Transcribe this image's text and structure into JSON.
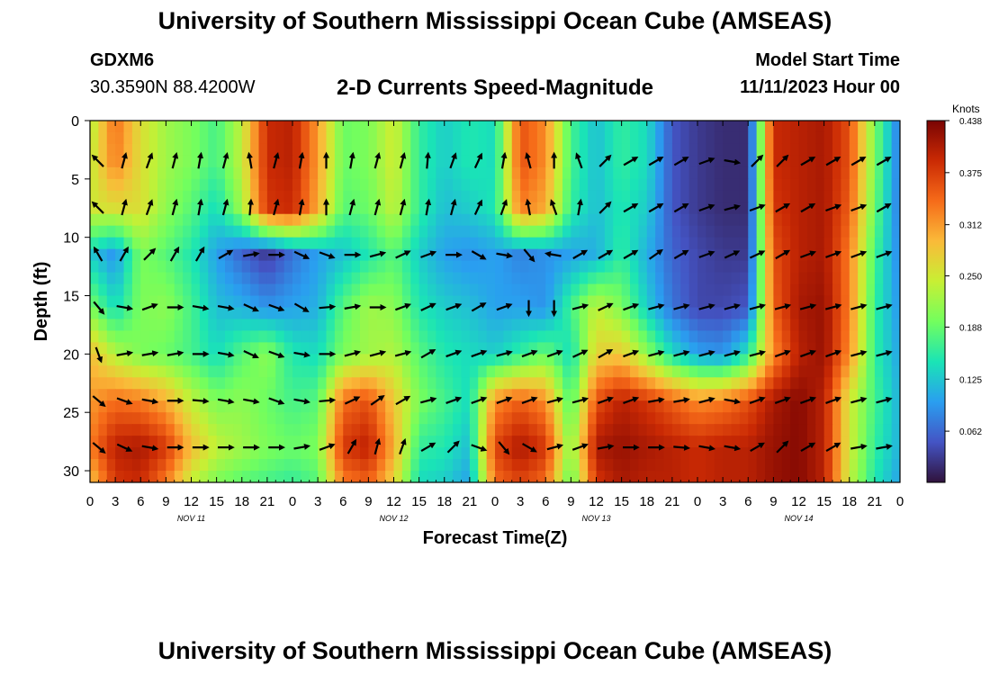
{
  "header": {
    "title": "University of Southern Mississippi Ocean Cube (AMSEAS)",
    "station_id": "GDXM6",
    "station_coords": "30.3590N  88.4200W",
    "plot_title": "2-D Currents Speed-Magnitude",
    "model_label": "Model Start Time",
    "model_time": "11/11/2023 Hour 00"
  },
  "footer": {
    "title": "University of Southern Mississippi Ocean Cube (AMSEAS)"
  },
  "chart_data": {
    "type": "heatmap",
    "title": "2-D Currents Speed-Magnitude",
    "xlabel": "Forecast Time(Z)",
    "ylabel": "Depth (ft)",
    "x_ticks": [
      "0",
      "3",
      "6",
      "9",
      "12",
      "15",
      "18",
      "21",
      "0",
      "3",
      "6",
      "9",
      "12",
      "15",
      "18",
      "21",
      "0",
      "3",
      "6",
      "9",
      "12",
      "15",
      "18",
      "21",
      "0",
      "3",
      "6",
      "9",
      "12",
      "15",
      "18",
      "21",
      "0"
    ],
    "date_labels": [
      {
        "label": "NOV 11",
        "hour": 12
      },
      {
        "label": "NOV 12",
        "hour": 36
      },
      {
        "label": "NOV 13",
        "hour": 60
      },
      {
        "label": "NOV 14",
        "hour": 84
      }
    ],
    "xlim": [
      0,
      96
    ],
    "ylim": [
      0,
      31
    ],
    "y_ticks": [
      0,
      5,
      10,
      15,
      20,
      25,
      30
    ],
    "colorbar": {
      "label": "Knots",
      "ticks": [
        "0.438",
        "0.375",
        "0.312",
        "0.250",
        "0.188",
        "0.125",
        "0.062"
      ],
      "min": 0.0,
      "max": 0.438
    },
    "colormap": [
      "#30123b",
      "#4454c4",
      "#2a9ef0",
      "#1ae4b6",
      "#72fe5e",
      "#c8ef34",
      "#faba39",
      "#f66b19",
      "#ca2a04",
      "#7a0403"
    ],
    "depths": [
      0,
      3.5,
      7.5,
      11.5,
      16,
      20,
      24,
      28,
      31
    ],
    "times": [
      0,
      3,
      6,
      9,
      12,
      15,
      18,
      21,
      24,
      27,
      30,
      33,
      36,
      39,
      42,
      45,
      48,
      51,
      54,
      57,
      60,
      63,
      66,
      69,
      72,
      75,
      78,
      81,
      84,
      87,
      90,
      93,
      96
    ],
    "speed": [
      [
        0.23,
        0.34,
        0.26,
        0.22,
        0.2,
        0.17,
        0.24,
        0.39,
        0.4,
        0.31,
        0.19,
        0.2,
        0.25,
        0.16,
        0.13,
        0.15,
        0.14,
        0.36,
        0.32,
        0.17,
        0.12,
        0.16,
        0.14,
        0.05,
        0.03,
        0.02,
        0.02,
        0.39,
        0.4,
        0.41,
        0.36,
        0.2,
        0.07
      ],
      [
        0.24,
        0.33,
        0.26,
        0.22,
        0.2,
        0.17,
        0.24,
        0.39,
        0.4,
        0.31,
        0.19,
        0.2,
        0.25,
        0.16,
        0.13,
        0.15,
        0.14,
        0.36,
        0.32,
        0.17,
        0.12,
        0.16,
        0.14,
        0.05,
        0.03,
        0.02,
        0.02,
        0.39,
        0.4,
        0.41,
        0.36,
        0.2,
        0.07
      ],
      [
        0.25,
        0.26,
        0.26,
        0.21,
        0.18,
        0.14,
        0.22,
        0.38,
        0.39,
        0.3,
        0.18,
        0.19,
        0.24,
        0.16,
        0.12,
        0.13,
        0.15,
        0.33,
        0.3,
        0.16,
        0.12,
        0.15,
        0.13,
        0.05,
        0.03,
        0.02,
        0.02,
        0.38,
        0.4,
        0.41,
        0.35,
        0.19,
        0.07
      ],
      [
        0.13,
        0.09,
        0.2,
        0.18,
        0.15,
        0.1,
        0.06,
        0.03,
        0.07,
        0.1,
        0.12,
        0.15,
        0.18,
        0.13,
        0.1,
        0.09,
        0.1,
        0.08,
        0.09,
        0.1,
        0.11,
        0.16,
        0.11,
        0.06,
        0.04,
        0.03,
        0.03,
        0.36,
        0.4,
        0.41,
        0.33,
        0.17,
        0.08
      ],
      [
        0.2,
        0.14,
        0.2,
        0.21,
        0.17,
        0.12,
        0.11,
        0.09,
        0.1,
        0.11,
        0.18,
        0.22,
        0.21,
        0.15,
        0.13,
        0.12,
        0.1,
        0.1,
        0.09,
        0.17,
        0.24,
        0.2,
        0.13,
        0.07,
        0.04,
        0.04,
        0.05,
        0.35,
        0.41,
        0.42,
        0.33,
        0.16,
        0.09
      ],
      [
        0.29,
        0.23,
        0.2,
        0.19,
        0.17,
        0.14,
        0.18,
        0.21,
        0.15,
        0.14,
        0.2,
        0.22,
        0.23,
        0.18,
        0.15,
        0.14,
        0.13,
        0.16,
        0.19,
        0.14,
        0.27,
        0.28,
        0.21,
        0.14,
        0.1,
        0.09,
        0.15,
        0.32,
        0.4,
        0.42,
        0.32,
        0.16,
        0.1
      ],
      [
        0.31,
        0.34,
        0.33,
        0.3,
        0.24,
        0.2,
        0.21,
        0.19,
        0.17,
        0.18,
        0.34,
        0.36,
        0.28,
        0.2,
        0.17,
        0.14,
        0.32,
        0.35,
        0.32,
        0.17,
        0.36,
        0.4,
        0.38,
        0.35,
        0.32,
        0.33,
        0.36,
        0.41,
        0.43,
        0.4,
        0.25,
        0.17,
        0.11
      ],
      [
        0.33,
        0.4,
        0.41,
        0.38,
        0.29,
        0.24,
        0.22,
        0.2,
        0.19,
        0.2,
        0.38,
        0.4,
        0.3,
        0.16,
        0.15,
        0.12,
        0.37,
        0.41,
        0.38,
        0.2,
        0.41,
        0.42,
        0.41,
        0.4,
        0.39,
        0.4,
        0.4,
        0.42,
        0.43,
        0.4,
        0.25,
        0.16,
        0.11
      ],
      [
        0.28,
        0.38,
        0.39,
        0.33,
        0.24,
        0.2,
        0.18,
        0.17,
        0.16,
        0.18,
        0.33,
        0.35,
        0.27,
        0.14,
        0.13,
        0.1,
        0.34,
        0.37,
        0.34,
        0.18,
        0.38,
        0.41,
        0.4,
        0.4,
        0.39,
        0.4,
        0.4,
        0.42,
        0.43,
        0.4,
        0.24,
        0.15,
        0.1
      ]
    ],
    "arrow_depths": [
      3.5,
      7.5,
      11.5,
      16,
      20,
      24,
      28
    ],
    "arrow_times": [
      1,
      4,
      7,
      10,
      13,
      16,
      19,
      22,
      25,
      28,
      31,
      34,
      37,
      40,
      43,
      46,
      49,
      52,
      55,
      58,
      61,
      64,
      67,
      70,
      73,
      76,
      79,
      82,
      85,
      88,
      91,
      94
    ],
    "arrow_dirs": [
      [
        -45,
        15,
        20,
        15,
        10,
        15,
        -10,
        15,
        10,
        0,
        10,
        15,
        15,
        5,
        20,
        25,
        10,
        -15,
        0,
        -20,
        45,
        60,
        60,
        60,
        70,
        100,
        45,
        45,
        60,
        60,
        60,
        60
      ],
      [
        -45,
        15,
        20,
        15,
        10,
        15,
        5,
        15,
        10,
        0,
        15,
        15,
        15,
        10,
        15,
        25,
        20,
        -10,
        -20,
        10,
        45,
        60,
        60,
        60,
        70,
        75,
        70,
        60,
        60,
        70,
        70,
        60
      ],
      [
        -30,
        30,
        45,
        30,
        30,
        60,
        80,
        90,
        115,
        110,
        90,
        75,
        65,
        70,
        90,
        120,
        100,
        140,
        -80,
        60,
        60,
        60,
        55,
        60,
        70,
        65,
        65,
        60,
        70,
        70,
        70,
        70
      ],
      [
        140,
        100,
        70,
        90,
        100,
        100,
        115,
        110,
        120,
        85,
        80,
        90,
        70,
        65,
        70,
        60,
        70,
        180,
        180,
        75,
        65,
        70,
        75,
        75,
        75,
        75,
        75,
        75,
        75,
        75,
        75,
        75
      ],
      [
        160,
        80,
        80,
        80,
        90,
        100,
        115,
        110,
        100,
        90,
        75,
        75,
        75,
        60,
        70,
        70,
        75,
        70,
        70,
        65,
        60,
        70,
        75,
        75,
        75,
        75,
        75,
        70,
        70,
        70,
        75,
        75
      ],
      [
        130,
        110,
        100,
        90,
        95,
        100,
        100,
        110,
        100,
        85,
        65,
        55,
        60,
        75,
        70,
        70,
        70,
        70,
        75,
        75,
        70,
        70,
        80,
        80,
        75,
        100,
        70,
        70,
        70,
        70,
        75,
        75
      ],
      [
        130,
        115,
        100,
        90,
        90,
        90,
        90,
        90,
        80,
        70,
        30,
        15,
        20,
        60,
        45,
        110,
        140,
        120,
        75,
        70,
        80,
        90,
        90,
        95,
        100,
        100,
        60,
        45,
        60,
        60,
        80,
        80
      ]
    ]
  }
}
